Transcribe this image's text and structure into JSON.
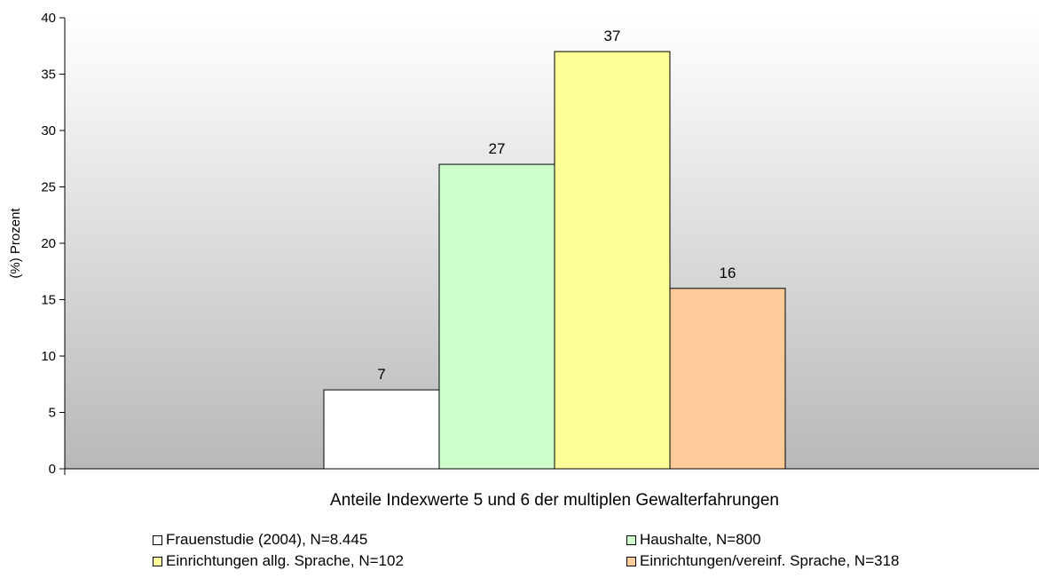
{
  "chart_data": {
    "type": "bar",
    "title": "",
    "xlabel": "Anteile Indexwerte 5 und 6 der multiplen Gewalterfahrungen",
    "ylabel": "(%) Prozent",
    "ylim": [
      0,
      40
    ],
    "yticks": [
      0,
      5,
      10,
      15,
      20,
      25,
      30,
      35,
      40
    ],
    "grid": false,
    "legend_position": "bottom",
    "series": [
      {
        "name": "Frauenstudie (2004), N=8.445",
        "value": 7,
        "label": "7",
        "color": "#ffffff"
      },
      {
        "name": "Haushalte,  N=800",
        "value": 27,
        "label": "27",
        "color": "#ccffcc"
      },
      {
        "name": "Einrichtungen allg. Sprache, N=102",
        "value": 37,
        "label": "37",
        "color": "#ffff99"
      },
      {
        "name": "Einrichtungen/vereinf. Sprache, N=318",
        "value": 16,
        "label": "16",
        "color": "#ffcc99"
      }
    ]
  }
}
